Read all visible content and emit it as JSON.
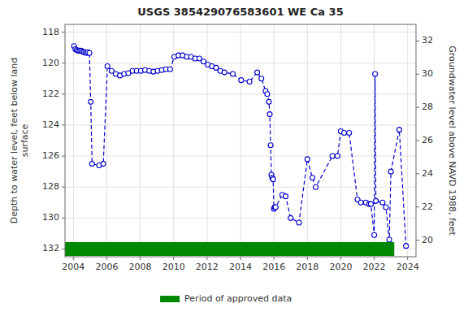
{
  "chart_data": {
    "type": "line",
    "title": "USGS 385429076583601 WE Ca  35",
    "ylabel": "Depth to water level, feet below land\n surface",
    "y2label": "Groundwater level above NAVD 1988, feet",
    "xlim": [
      2003.5,
      2024.5
    ],
    "xticks": [
      2004,
      2006,
      2008,
      2010,
      2012,
      2014,
      2016,
      2018,
      2020,
      2022,
      2024
    ],
    "ylim": [
      132.5,
      117.5
    ],
    "yticks": [
      118,
      120,
      122,
      124,
      126,
      128,
      130,
      132
    ],
    "y2lim": [
      19.0,
      33.0
    ],
    "y2ticks": [
      20,
      22,
      24,
      26,
      28,
      30,
      32
    ],
    "grid": true,
    "legend": "bottom",
    "series": [
      {
        "type": "line",
        "color": "#0000CC",
        "marker": "circle",
        "line_style": "dashed",
        "x": [
          2004.04,
          2004.12,
          2004.2,
          2004.28,
          2004.37,
          2004.46,
          2004.54,
          2004.62,
          2004.71,
          2004.79,
          2004.87,
          2004.96,
          2005.04,
          2005.12,
          2005.54,
          2005.79,
          2006.04,
          2006.29,
          2006.54,
          2006.79,
          2007.04,
          2007.29,
          2007.54,
          2007.79,
          2008.04,
          2008.29,
          2008.54,
          2008.79,
          2009.04,
          2009.29,
          2009.54,
          2009.79,
          2010.04,
          2010.29,
          2010.54,
          2010.79,
          2011.04,
          2011.29,
          2011.54,
          2011.79,
          2012.04,
          2012.29,
          2012.54,
          2012.79,
          2013.04,
          2013.54,
          2014.04,
          2014.54,
          2015.0,
          2015.25,
          2015.5,
          2015.6,
          2015.7,
          2015.75,
          2015.8,
          2015.85,
          2015.9,
          2015.95,
          2016.0,
          2016.05,
          2016.1,
          2016.5,
          2016.7,
          2017.0,
          2017.5,
          2018.0,
          2018.3,
          2018.5,
          2019.5,
          2019.8,
          2020.0,
          2020.2,
          2020.5,
          2021.0,
          2021.2,
          2021.5,
          2021.7,
          2021.8,
          2022.0,
          2022.05,
          2022.1,
          2022.5,
          2022.7,
          2022.9,
          2023.0,
          2023.5,
          2023.9
        ],
        "values": [
          118.9,
          119.1,
          119.15,
          119.2,
          119.2,
          119.2,
          119.25,
          119.3,
          119.3,
          119.35,
          119.3,
          119.35,
          122.5,
          126.5,
          126.6,
          126.5,
          120.2,
          120.5,
          120.7,
          120.8,
          120.7,
          120.65,
          120.5,
          120.5,
          120.5,
          120.45,
          120.5,
          120.55,
          120.5,
          120.45,
          120.4,
          120.4,
          119.6,
          119.5,
          119.5,
          119.6,
          119.6,
          119.7,
          119.7,
          119.9,
          120.1,
          120.2,
          120.3,
          120.5,
          120.6,
          120.7,
          121.1,
          121.2,
          120.6,
          121.0,
          121.8,
          122.0,
          122.5,
          123.3,
          125.3,
          127.2,
          127.4,
          127.5,
          129.4,
          129.3,
          129.3,
          128.5,
          128.6,
          130.0,
          130.3,
          126.2,
          127.4,
          128.0,
          126.0,
          126.0,
          124.4,
          124.5,
          124.5,
          128.8,
          129.0,
          129.0,
          129.1,
          129.1,
          131.1,
          120.7,
          128.9,
          129.0,
          129.3,
          131.4,
          127.0,
          124.3,
          131.8
        ]
      },
      {
        "type": "band",
        "name": "Period of approved data",
        "color": "#008800",
        "x": [
          2003.5,
          2023.2
        ],
        "low": [
          131.55,
          131.55
        ],
        "high": [
          132.45,
          132.45
        ]
      }
    ]
  }
}
